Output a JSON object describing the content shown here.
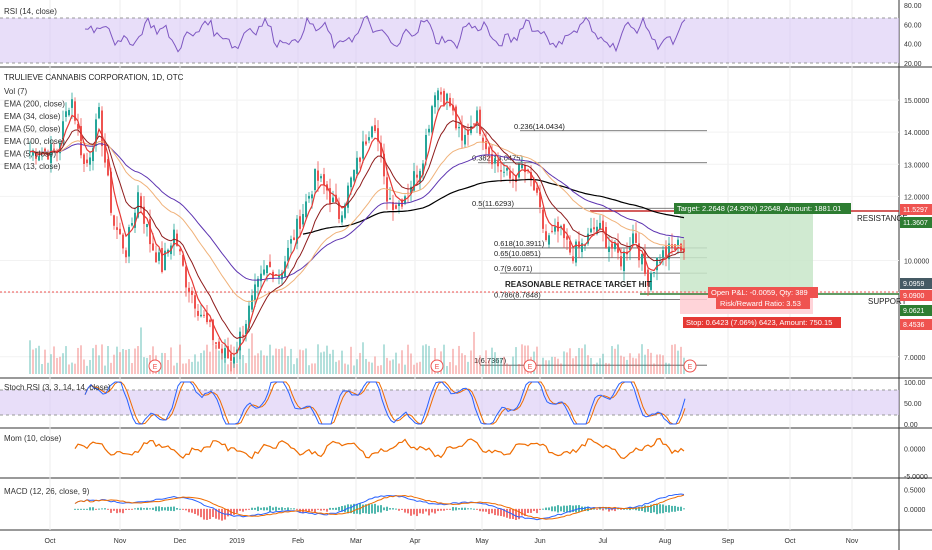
{
  "colors": {
    "up": "#26a69a",
    "down": "#ef5350",
    "ema5": "#e53935",
    "ema13": "#8e1b1b",
    "ema34": "#f0b27a",
    "ema50": "#5e35b1",
    "ema200": "#000000",
    "rsi": "#7e57c2",
    "stoch_k": "#2962ff",
    "stoch_d": "#ef6c00",
    "mom": "#ef6c00",
    "macd": "#2962ff",
    "signal": "#ef6c00",
    "band": "#d9c8f5",
    "target_zone": "#c8e6c9",
    "stop_zone": "#ffcdd2"
  },
  "rsi_panel": {
    "label": "RSI (14, close)",
    "ticks": [
      "80.00",
      "60.00",
      "40.00",
      "20.00"
    ]
  },
  "main_panel": {
    "title": "TRULIEVE CANNABIS CORPORATION, 1D, OTC",
    "legend": [
      "Vol (7)",
      "EMA (200, close)",
      "EMA (34, close)",
      "EMA (50, close)",
      "EMA (100, close)",
      "EMA (5, close)",
      "EMA (13, close)"
    ],
    "price_ticks": [
      "15.0000",
      "14.0000",
      "13.0000",
      "12.0000",
      "10.0000",
      "9.0000",
      "7.0000"
    ]
  },
  "fib_levels": [
    {
      "label": "0.236(14.0434)",
      "price": 14.0434
    },
    {
      "label": "0.382(13.0475)",
      "price": 13.0475
    },
    {
      "label": "0.5(11.6293)",
      "price": 11.6293
    },
    {
      "label": "0.618(10.3911)",
      "price": 10.3911
    },
    {
      "label": "0.65(10.0851)",
      "price": 10.0851
    },
    {
      "label": "0.7(9.6071)",
      "price": 9.6071
    },
    {
      "label": "0.786(8.7848)",
      "price": 8.7848
    },
    {
      "label": "1(6.7367)",
      "price": 6.7367
    }
  ],
  "annotations": {
    "retrace": "REASONABLE RETRACE TARGET HIT",
    "resistance": "RESISTANCE",
    "support": "SUPPORT",
    "target": "Target: 2.2648 (24.90%) 22648, Amount: 1881.01",
    "open_pl": "Open P&L: -0.0059, Qty: 389",
    "risk_reward": "Risk/Reward Ratio: 3.53",
    "stop": "Stop: 0.6423 (7.06%) 6423, Amount: 750.15",
    "event_marker": "E"
  },
  "price_tags": [
    {
      "label": "11.5297",
      "color": "#ef5350"
    },
    {
      "label": "11.3607",
      "color": "#2e7d32"
    },
    {
      "label": "9.0959",
      "color": "#455a64"
    },
    {
      "label": "9.0900",
      "color": "#ef5350"
    },
    {
      "label": "9.0621",
      "color": "#2e7d32"
    },
    {
      "label": "8.4536",
      "color": "#ef5350"
    }
  ],
  "stoch_panel": {
    "label": "Stoch RSI (3, 3, 14, 14, close)",
    "ticks": [
      "100.00",
      "50.00",
      "0.00"
    ]
  },
  "mom_panel": {
    "label": "Mom (10, close)",
    "ticks": [
      "0.0000",
      "-5.0000"
    ]
  },
  "macd_panel": {
    "label": "MACD (12, 26, close, 9)",
    "ticks": [
      "0.5000",
      "0.0000"
    ]
  },
  "chart_data": {
    "type": "candlestick",
    "title": "TRULIEVE CANNABIS CORPORATION, 1D, OTC",
    "x_labels": [
      "Oct",
      "Nov",
      "Dec",
      "2019",
      "Feb",
      "Mar",
      "Apr",
      "May",
      "Jun",
      "Jul",
      "Aug",
      "Sep",
      "Oct",
      "Nov"
    ],
    "price_range": [
      6.4,
      16.0
    ],
    "close_path": [
      [
        "Oct",
        13.4
      ],
      [
        "Oct",
        15.2
      ],
      [
        "Oct",
        12.8
      ],
      [
        "Oct",
        14.5
      ],
      [
        "Oct",
        11.2
      ],
      [
        "Nov",
        10.3
      ],
      [
        "Nov",
        12.1
      ],
      [
        "Nov",
        10.6
      ],
      [
        "Nov",
        9.8
      ],
      [
        "Nov",
        10.9
      ],
      [
        "Dec",
        9.4
      ],
      [
        "Dec",
        8.6
      ],
      [
        "Dec",
        7.9
      ],
      [
        "Dec",
        7.2
      ],
      [
        "Dec",
        6.9
      ],
      [
        "2019",
        7.9
      ],
      [
        "2019",
        9.0
      ],
      [
        "2019",
        9.8
      ],
      [
        "2019",
        9.6
      ],
      [
        "2019",
        10.6
      ],
      [
        "Feb",
        11.6
      ],
      [
        "Feb",
        12.6
      ],
      [
        "Feb",
        12.2
      ],
      [
        "Feb",
        11.4
      ],
      [
        "Feb",
        12.4
      ],
      [
        "Mar",
        13.4
      ],
      [
        "Mar",
        14.6
      ],
      [
        "Mar",
        12.1
      ],
      [
        "Mar",
        11.7
      ],
      [
        "Mar",
        12.3
      ],
      [
        "Apr",
        13.1
      ],
      [
        "Apr",
        15.4
      ],
      [
        "Apr",
        15.0
      ],
      [
        "Apr",
        13.6
      ],
      [
        "Apr",
        14.6
      ],
      [
        "May",
        13.5
      ],
      [
        "May",
        12.9
      ],
      [
        "May",
        12.5
      ],
      [
        "May",
        12.9
      ],
      [
        "May",
        12.2
      ],
      [
        "Jun",
        10.6
      ],
      [
        "Jun",
        10.9
      ],
      [
        "Jun",
        10.2
      ],
      [
        "Jun",
        10.5
      ],
      [
        "Jun",
        11.1
      ],
      [
        "Jul",
        10.5
      ],
      [
        "Jul",
        10.0
      ],
      [
        "Jul",
        10.9
      ],
      [
        "Jul",
        9.4
      ],
      [
        "Jul",
        10.1
      ],
      [
        "Aug",
        10.5
      ],
      [
        "Aug",
        9.1
      ]
    ],
    "rsi_range": [
      20,
      80
    ],
    "stoch_range": [
      0,
      100
    ],
    "mom_range": [
      -5,
      3
    ],
    "macd_range": [
      -0.5,
      0.7
    ]
  }
}
